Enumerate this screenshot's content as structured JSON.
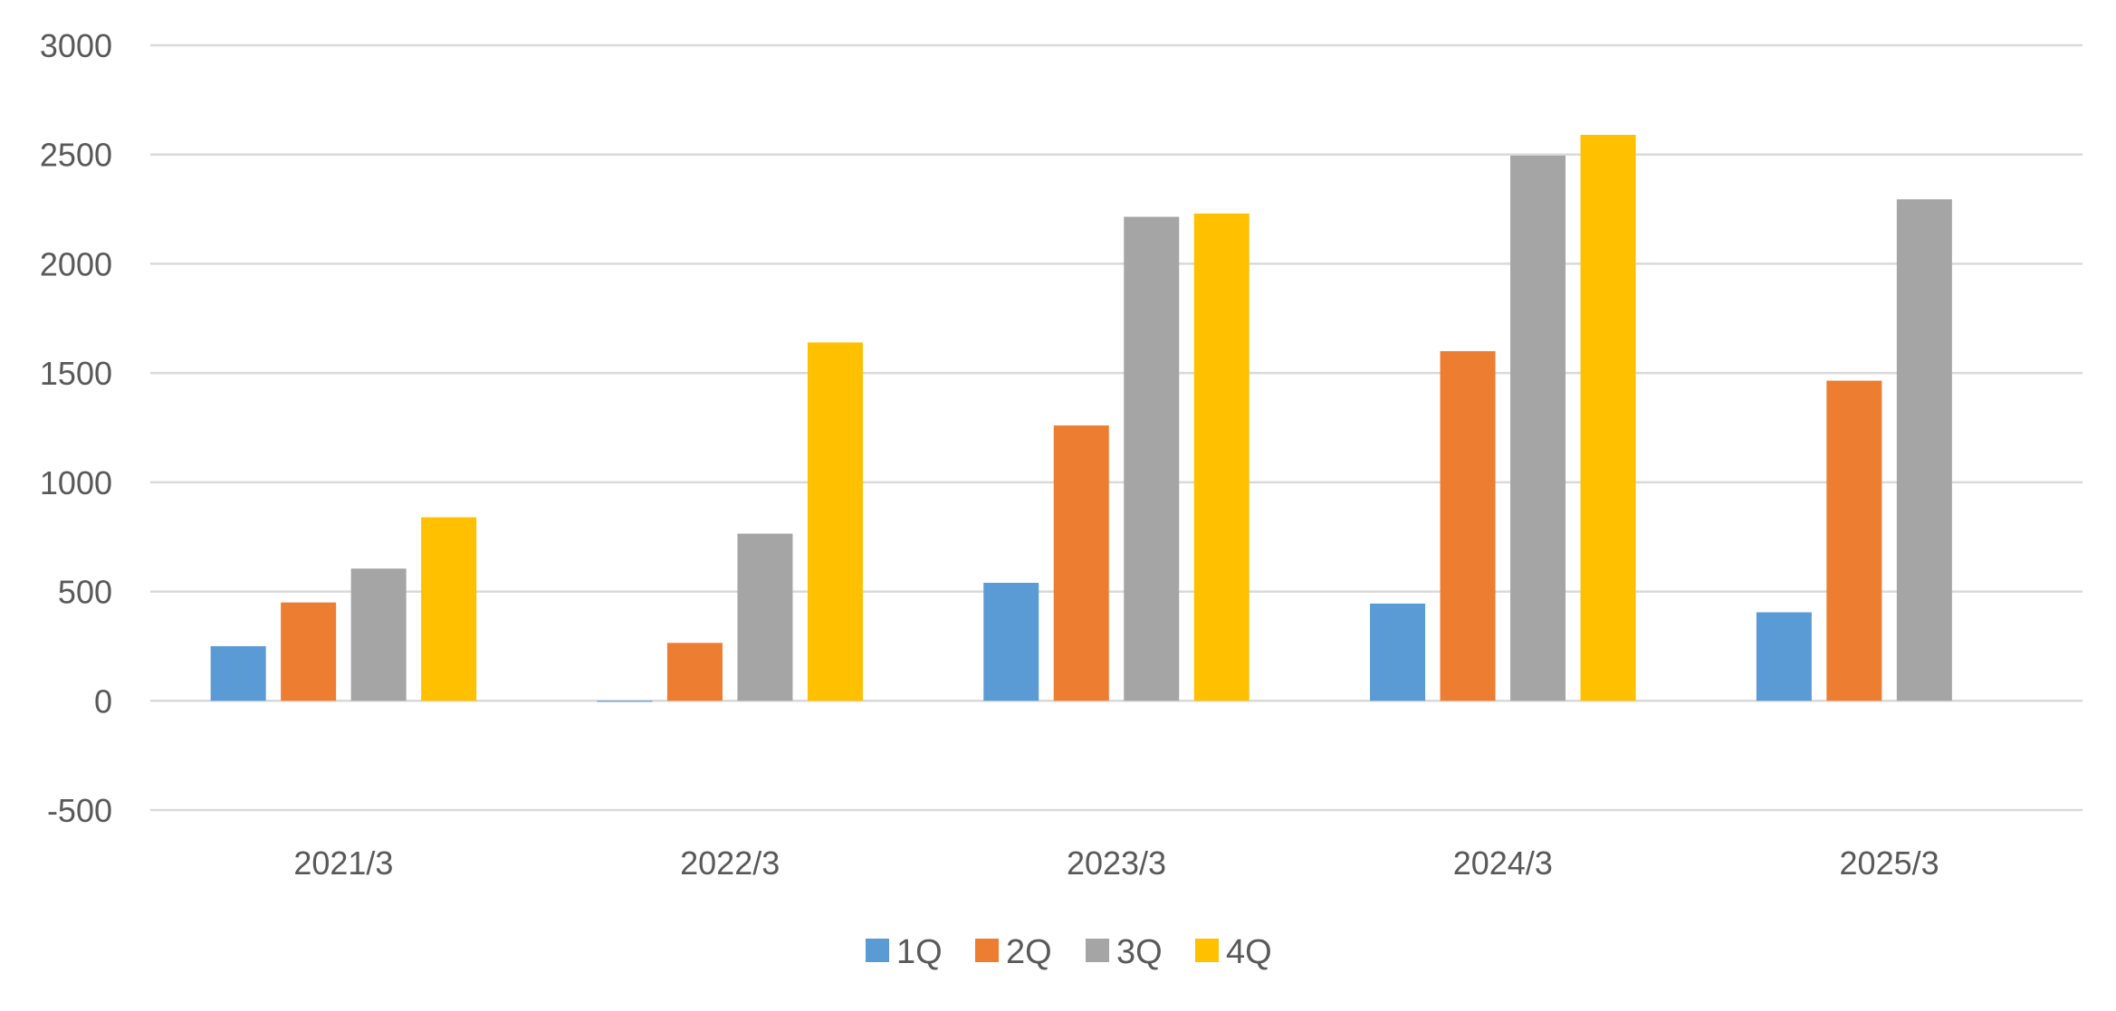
{
  "chart_data": {
    "type": "bar",
    "categories": [
      "2021/3",
      "2022/3",
      "2023/3",
      "2024/3",
      "2025/3"
    ],
    "series": [
      {
        "name": "1Q",
        "color": "#5b9bd5",
        "values": [
          250,
          -5,
          540,
          445,
          405
        ]
      },
      {
        "name": "2Q",
        "color": "#ed7d31",
        "values": [
          450,
          265,
          1260,
          1600,
          1465
        ]
      },
      {
        "name": "3Q",
        "color": "#a5a5a5",
        "values": [
          605,
          765,
          2215,
          2495,
          2295
        ]
      },
      {
        "name": "4Q",
        "color": "#ffc000",
        "values": [
          840,
          1640,
          2230,
          2590,
          null
        ]
      }
    ],
    "y_ticks": [
      "-500",
      "0",
      "500",
      "1000",
      "1500",
      "2000",
      "2500",
      "3000"
    ],
    "ylim": [
      -500,
      3000
    ],
    "grid": true,
    "legend_position": "bottom"
  }
}
